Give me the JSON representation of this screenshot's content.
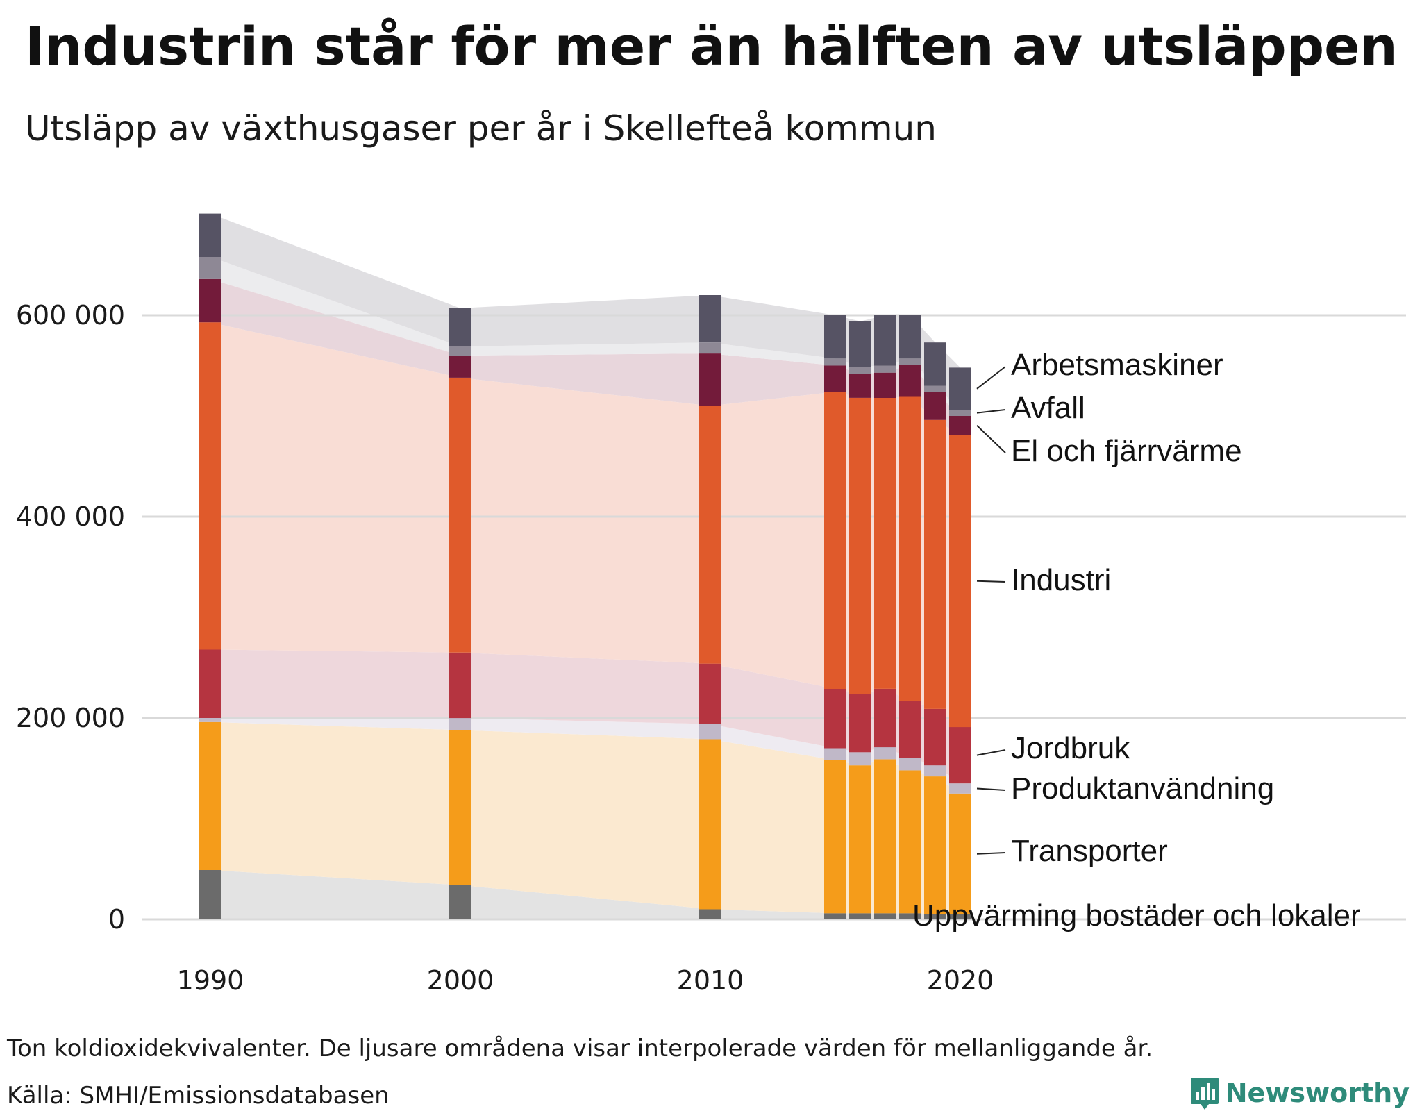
{
  "header": {
    "title": "Industrin står för mer än hälften av utsläppen",
    "subtitle": "Utsläpp av växthusgaser per år i Skellefteå kommun"
  },
  "footer": {
    "note": "Ton koldioxidekvivalenter. De ljusare områdena visar interpolerade värden för mellanliggande år.",
    "source": "Källa: SMHI/Emissionsdatabasen",
    "brand": "Newsworthy"
  },
  "chart_data": {
    "type": "bar",
    "stacked": true,
    "title": "Industrin står för mer än hälften av utsläppen",
    "subtitle": "Utsläpp av växthusgaser per år i Skellefteå kommun",
    "unit": "Ton koldioxidekvivalenter",
    "xlabel": "",
    "ylabel": "",
    "years": [
      1990,
      2000,
      2010,
      2015,
      2016,
      2017,
      2018,
      2019,
      2020
    ],
    "x_range": [
      1990,
      2020
    ],
    "ylim": [
      0,
      700000
    ],
    "yticks": [
      0,
      200000,
      400000,
      600000
    ],
    "ytick_labels": [
      "0",
      "200 000",
      "400 000",
      "600 000"
    ],
    "xticks": [
      1990,
      2000,
      2010,
      2020
    ],
    "xtick_labels": [
      "1990",
      "2000",
      "2010",
      "2020"
    ],
    "grid": true,
    "series": [
      {
        "name": "Uppvärming bostäder och lokaler",
        "color": "#6b6b6b",
        "band_color": "#e3e3e3",
        "values": [
          49000,
          34000,
          10000,
          6000,
          6000,
          6000,
          6000,
          5000,
          5000
        ]
      },
      {
        "name": "Transporter",
        "color": "#f59c1a",
        "band_color": "#fbe9d0",
        "values": [
          147000,
          154000,
          169000,
          152000,
          147000,
          153000,
          142000,
          137000,
          120000
        ]
      },
      {
        "name": "Produktanvändning",
        "color": "#c0b8c8",
        "band_color": "#eeebf1",
        "values": [
          4000,
          12000,
          15000,
          12000,
          13000,
          12000,
          12000,
          11000,
          10000
        ]
      },
      {
        "name": "Jordbruk",
        "color": "#b53440",
        "band_color": "#eed7dc",
        "values": [
          68000,
          65000,
          60000,
          59000,
          58000,
          58000,
          57000,
          56000,
          56000
        ]
      },
      {
        "name": "Industri",
        "color": "#e05a2b",
        "band_color": "#f9ddd5",
        "values": [
          325000,
          273000,
          256000,
          295000,
          294000,
          289000,
          302000,
          287000,
          290000
        ]
      },
      {
        "name": "El och fjärrvärme",
        "color": "#731b3a",
        "band_color": "#e8d6dc",
        "values": [
          43000,
          22000,
          52000,
          26000,
          24000,
          25000,
          32000,
          28000,
          19000
        ]
      },
      {
        "name": "Avfall",
        "color": "#8e8895",
        "band_color": "#ececee",
        "values": [
          22000,
          9000,
          11000,
          7000,
          7000,
          7000,
          6000,
          6000,
          6000
        ]
      },
      {
        "name": "Arbetsmaskiner",
        "color": "#565364",
        "band_color": "#e0dfe2",
        "values": [
          43000,
          38000,
          47000,
          43000,
          45000,
          50000,
          43000,
          43000,
          42000
        ]
      }
    ],
    "annotation_labels": [
      "Arbetsmaskiner",
      "Avfall",
      "El och fjärrvärme",
      "Industri",
      "Jordbruk",
      "Produktanvändning",
      "Transporter",
      "Uppvärming bostäder och lokaler"
    ]
  }
}
